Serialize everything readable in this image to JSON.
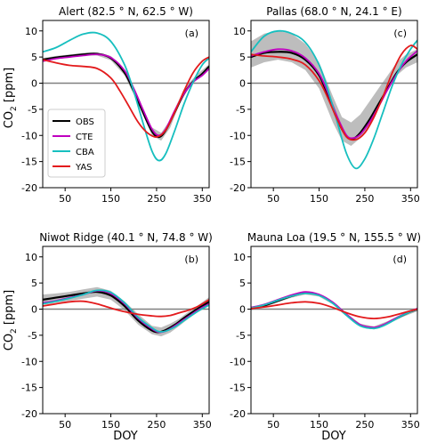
{
  "figure": {
    "ylabel_main": "CO",
    "ylabel_sub": "2",
    "ylabel_unit": " [ppm]",
    "xlabel": "DOY"
  },
  "colors": {
    "OBS": "#000000",
    "CTE": "#bf00bf",
    "CBA": "#17bfbf",
    "YAS": "#e31a1c",
    "band": "#bdbdbd",
    "zero": "#808080"
  },
  "chart_data": [
    {
      "type": "line",
      "title": "Alert (82.5$^\\circ$N, 62.5$^\\circ$W)",
      "title_text": "Alert (82.5 ° N, 62.5 ° W)",
      "panel_label": "(a)",
      "xlim": [
        1,
        365
      ],
      "ylim": [
        -20,
        12
      ],
      "xticks": [
        50,
        150,
        250,
        350
      ],
      "yticks": [
        -20,
        -15,
        -10,
        -5,
        0,
        5,
        10
      ],
      "legend": {
        "placement": "lower-left",
        "entries": [
          "OBS",
          "CTE",
          "CBA",
          "YAS"
        ]
      },
      "band": {
        "x": [
          1,
          30,
          60,
          90,
          120,
          150,
          180,
          210,
          240,
          260,
          280,
          300,
          320,
          340,
          365
        ],
        "upper": [
          4.8,
          5.2,
          5.5,
          5.8,
          5.9,
          5.2,
          2.5,
          -3.0,
          -8.5,
          -9.5,
          -7.0,
          -3.0,
          0.0,
          1.8,
          3.6
        ],
        "lower": [
          4.2,
          4.6,
          4.9,
          5.2,
          5.3,
          4.4,
          1.5,
          -4.0,
          -10.0,
          -11.0,
          -8.5,
          -4.0,
          -1.0,
          1.0,
          2.8
        ]
      },
      "series": [
        {
          "name": "OBS",
          "x": [
            1,
            30,
            60,
            90,
            120,
            150,
            180,
            200,
            220,
            240,
            255,
            270,
            290,
            310,
            330,
            350,
            365
          ],
          "values": [
            4.5,
            4.9,
            5.2,
            5.5,
            5.6,
            4.8,
            2.0,
            -1.5,
            -5.5,
            -9.2,
            -10.3,
            -9.0,
            -5.5,
            -2.0,
            0.3,
            1.8,
            3.2
          ]
        },
        {
          "name": "CTE",
          "x": [
            1,
            30,
            60,
            90,
            120,
            150,
            180,
            200,
            220,
            240,
            255,
            270,
            290,
            310,
            330,
            350,
            365
          ],
          "values": [
            4.2,
            4.7,
            5.0,
            5.3,
            5.5,
            4.9,
            2.4,
            -1.0,
            -5.0,
            -8.8,
            -10.0,
            -8.8,
            -5.2,
            -2.0,
            0.2,
            1.5,
            2.8
          ]
        },
        {
          "name": "CBA",
          "x": [
            1,
            30,
            60,
            90,
            120,
            150,
            180,
            200,
            220,
            240,
            255,
            270,
            290,
            310,
            330,
            350,
            365
          ],
          "values": [
            6.0,
            6.8,
            8.2,
            9.4,
            9.6,
            8.0,
            3.5,
            -1.5,
            -7.5,
            -13.0,
            -14.8,
            -13.5,
            -9.0,
            -4.0,
            0.2,
            3.5,
            4.8
          ]
        },
        {
          "name": "YAS",
          "x": [
            1,
            30,
            60,
            90,
            120,
            150,
            170,
            190,
            210,
            230,
            250,
            270,
            290,
            310,
            330,
            350,
            365
          ],
          "values": [
            4.5,
            3.9,
            3.4,
            3.2,
            2.8,
            1.0,
            -1.5,
            -4.5,
            -7.5,
            -9.5,
            -10.3,
            -9.0,
            -5.5,
            -1.5,
            2.0,
            4.2,
            5.0
          ]
        }
      ]
    },
    {
      "type": "line",
      "title_text": "Pallas (68.0 ° N, 24.1 ° E)",
      "panel_label": "(c)",
      "xlim": [
        1,
        365
      ],
      "ylim": [
        -20,
        12
      ],
      "xticks": [
        50,
        150,
        250,
        350
      ],
      "yticks": [
        -20,
        -15,
        -10,
        -5,
        0,
        5,
        10
      ],
      "band": {
        "x": [
          1,
          30,
          60,
          90,
          120,
          150,
          180,
          200,
          220,
          240,
          260,
          280,
          300,
          320,
          340,
          365
        ],
        "upper": [
          8.0,
          9.5,
          10.0,
          9.5,
          7.5,
          4.0,
          -2.5,
          -6.5,
          -7.5,
          -6.0,
          -3.5,
          -1.0,
          1.5,
          4.0,
          5.5,
          6.5
        ],
        "lower": [
          3.0,
          4.0,
          4.5,
          4.0,
          2.5,
          -1.0,
          -7.5,
          -11.0,
          -12.0,
          -10.5,
          -8.0,
          -4.5,
          -1.5,
          1.5,
          3.0,
          4.0
        ]
      },
      "series": [
        {
          "name": "OBS",
          "x": [
            1,
            30,
            60,
            90,
            120,
            150,
            170,
            190,
            210,
            225,
            240,
            260,
            280,
            300,
            320,
            340,
            365
          ],
          "values": [
            5.0,
            5.8,
            6.0,
            5.8,
            4.5,
            1.5,
            -2.5,
            -7.0,
            -10.2,
            -10.6,
            -9.5,
            -7.0,
            -4.0,
            -1.0,
            2.0,
            4.0,
            5.5
          ]
        },
        {
          "name": "CTE",
          "x": [
            1,
            30,
            60,
            90,
            120,
            150,
            170,
            190,
            210,
            225,
            240,
            260,
            280,
            300,
            320,
            340,
            365
          ],
          "values": [
            5.2,
            6.0,
            6.5,
            6.2,
            4.8,
            1.8,
            -2.0,
            -6.5,
            -10.0,
            -10.5,
            -9.8,
            -7.5,
            -4.5,
            -1.2,
            1.8,
            4.2,
            6.2
          ]
        },
        {
          "name": "CBA",
          "x": [
            1,
            30,
            60,
            90,
            120,
            150,
            170,
            190,
            210,
            230,
            250,
            270,
            290,
            310,
            330,
            350,
            365
          ],
          "values": [
            6.0,
            9.0,
            10.0,
            9.5,
            7.8,
            3.5,
            -1.5,
            -7.5,
            -13.5,
            -16.3,
            -14.5,
            -10.5,
            -5.5,
            -0.5,
            3.5,
            6.5,
            8.2
          ]
        },
        {
          "name": "YAS",
          "x": [
            1,
            30,
            60,
            90,
            120,
            150,
            170,
            190,
            210,
            230,
            250,
            270,
            290,
            310,
            330,
            350,
            365
          ],
          "values": [
            5.5,
            5.2,
            5.0,
            4.6,
            3.5,
            0.5,
            -3.0,
            -7.0,
            -10.3,
            -10.8,
            -9.5,
            -6.5,
            -2.5,
            2.0,
            5.5,
            7.2,
            6.5
          ]
        }
      ]
    },
    {
      "type": "line",
      "title_text": "Niwot Ridge (40.1 ° N, 74.8 ° W)",
      "panel_label": "(b)",
      "xlim": [
        1,
        365
      ],
      "ylim": [
        -20,
        12
      ],
      "xticks": [
        50,
        150,
        250,
        350
      ],
      "yticks": [
        -20,
        -15,
        -10,
        -5,
        0,
        5,
        10
      ],
      "band": {
        "x": [
          1,
          30,
          60,
          90,
          120,
          150,
          180,
          210,
          240,
          260,
          280,
          300,
          320,
          340,
          365
        ],
        "upper": [
          2.8,
          3.0,
          3.3,
          3.8,
          4.2,
          3.5,
          1.5,
          -1.0,
          -3.2,
          -3.5,
          -2.8,
          -1.8,
          -0.5,
          0.7,
          2.3
        ],
        "lower": [
          0.8,
          1.2,
          1.6,
          2.0,
          2.4,
          1.8,
          -0.2,
          -3.0,
          -4.8,
          -5.2,
          -4.5,
          -3.2,
          -1.8,
          -0.6,
          0.6
        ]
      },
      "series": [
        {
          "name": "OBS",
          "x": [
            1,
            30,
            60,
            90,
            120,
            150,
            180,
            210,
            240,
            255,
            270,
            290,
            310,
            330,
            350,
            365
          ],
          "values": [
            1.8,
            2.2,
            2.6,
            3.0,
            3.3,
            2.6,
            0.6,
            -2.2,
            -4.1,
            -4.4,
            -4.0,
            -3.0,
            -1.7,
            -0.5,
            0.6,
            1.4
          ]
        },
        {
          "name": "CTE",
          "x": [
            1,
            30,
            60,
            90,
            120,
            150,
            180,
            210,
            240,
            255,
            270,
            290,
            310,
            330,
            350,
            365
          ],
          "values": [
            1.2,
            1.6,
            2.2,
            2.8,
            3.5,
            3.0,
            1.0,
            -1.8,
            -3.8,
            -4.4,
            -4.2,
            -3.2,
            -2.0,
            -0.8,
            0.3,
            1.0
          ]
        },
        {
          "name": "CBA",
          "x": [
            1,
            30,
            60,
            90,
            120,
            150,
            180,
            210,
            240,
            255,
            270,
            290,
            310,
            330,
            350,
            365
          ],
          "values": [
            1.0,
            1.5,
            2.1,
            2.8,
            3.6,
            3.2,
            1.2,
            -1.6,
            -3.6,
            -4.3,
            -4.2,
            -3.4,
            -2.2,
            -1.0,
            0.1,
            0.8
          ]
        },
        {
          "name": "YAS",
          "x": [
            1,
            30,
            60,
            90,
            120,
            150,
            180,
            210,
            240,
            260,
            280,
            300,
            320,
            340,
            365
          ],
          "values": [
            0.6,
            1.0,
            1.4,
            1.5,
            1.0,
            0.2,
            -0.5,
            -1.0,
            -1.3,
            -1.4,
            -1.2,
            -0.7,
            -0.2,
            0.5,
            1.8
          ]
        }
      ]
    },
    {
      "type": "line",
      "title_text": "Mauna Loa (19.5 ° N, 155.5 ° W)",
      "panel_label": "(d)",
      "xlim": [
        1,
        365
      ],
      "ylim": [
        -20,
        12
      ],
      "xticks": [
        50,
        150,
        250,
        350
      ],
      "yticks": [
        -20,
        -15,
        -10,
        -5,
        0,
        5,
        10
      ],
      "band": {
        "x": [
          1,
          30,
          60,
          90,
          120,
          150,
          180,
          210,
          240,
          270,
          300,
          330,
          365
        ],
        "upper": [
          0.4,
          1.0,
          1.9,
          2.8,
          3.4,
          3.0,
          1.5,
          -0.8,
          -2.8,
          -3.3,
          -2.3,
          -1.0,
          0.2
        ],
        "lower": [
          -0.2,
          0.4,
          1.3,
          2.2,
          2.8,
          2.4,
          0.9,
          -1.4,
          -3.4,
          -3.9,
          -2.9,
          -1.6,
          -0.4
        ]
      },
      "series": [
        {
          "name": "OBS",
          "x": [
            1,
            30,
            60,
            90,
            120,
            150,
            180,
            210,
            240,
            270,
            290,
            310,
            330,
            350,
            365
          ],
          "values": [
            0.1,
            0.7,
            1.6,
            2.5,
            3.1,
            2.7,
            1.2,
            -1.1,
            -3.1,
            -3.6,
            -3.1,
            -2.2,
            -1.3,
            -0.5,
            0.0
          ]
        },
        {
          "name": "CTE",
          "x": [
            1,
            30,
            60,
            90,
            120,
            150,
            180,
            210,
            240,
            270,
            290,
            310,
            330,
            350,
            365
          ],
          "values": [
            0.3,
            0.9,
            1.8,
            2.7,
            3.3,
            2.8,
            1.3,
            -1.0,
            -3.0,
            -3.5,
            -3.0,
            -2.1,
            -1.2,
            -0.4,
            0.1
          ]
        },
        {
          "name": "CBA",
          "x": [
            1,
            30,
            60,
            90,
            120,
            150,
            180,
            210,
            240,
            270,
            290,
            310,
            330,
            350,
            365
          ],
          "values": [
            0.2,
            0.8,
            1.7,
            2.5,
            3.0,
            2.6,
            1.1,
            -1.2,
            -3.2,
            -3.7,
            -3.2,
            -2.3,
            -1.3,
            -0.5,
            0.0
          ]
        },
        {
          "name": "YAS",
          "x": [
            1,
            30,
            60,
            90,
            120,
            150,
            180,
            210,
            240,
            270,
            300,
            330,
            365
          ],
          "values": [
            0.1,
            0.4,
            0.8,
            1.2,
            1.4,
            1.1,
            0.3,
            -0.7,
            -1.5,
            -1.8,
            -1.5,
            -0.8,
            0.0
          ]
        }
      ]
    }
  ]
}
